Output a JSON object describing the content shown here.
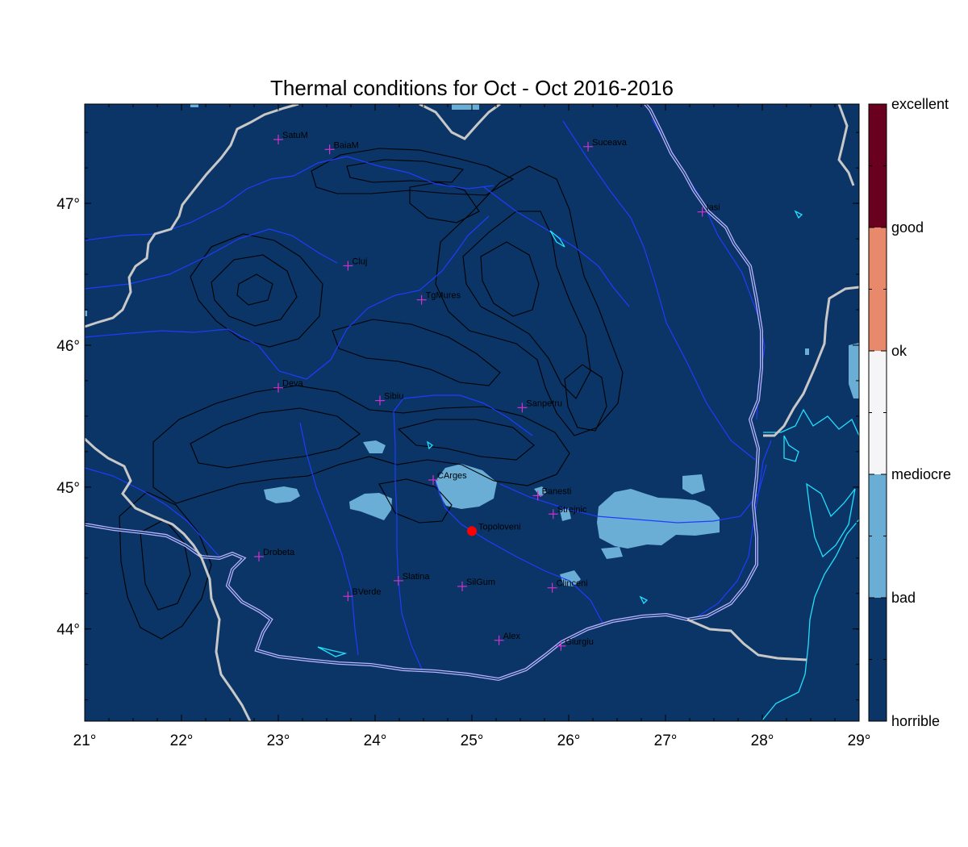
{
  "title": "Thermal conditions for Oct - Oct  2016-2016",
  "colors": {
    "background": "#0b3566",
    "bad": "#6aaed6",
    "contour": "#000000",
    "border": "#c8c8c8",
    "river": "#1f3cff",
    "danube": "#b9b3ff",
    "coast": "#21e0ff",
    "city_marker": "#cc33cc",
    "site_marker": "#ff0000"
  },
  "axes": {
    "lon_range": [
      21,
      29
    ],
    "lat_range": [
      43.35,
      47.7
    ],
    "x_ticks": [
      {
        "value": 21,
        "label": "21°"
      },
      {
        "value": 22,
        "label": "22°"
      },
      {
        "value": 23,
        "label": "23°"
      },
      {
        "value": 24,
        "label": "24°"
      },
      {
        "value": 25,
        "label": "25°"
      },
      {
        "value": 26,
        "label": "26°"
      },
      {
        "value": 27,
        "label": "27°"
      },
      {
        "value": 28,
        "label": "28°"
      },
      {
        "value": 29,
        "label": "29°"
      }
    ],
    "y_ticks": [
      {
        "value": 44,
        "label": "44°"
      },
      {
        "value": 45,
        "label": "45°"
      },
      {
        "value": 46,
        "label": "46°"
      },
      {
        "value": 47,
        "label": "47°"
      }
    ]
  },
  "colorbar": {
    "segments": [
      {
        "name": "horrible",
        "color": "#0b3566"
      },
      {
        "name": "bad",
        "color": "#6aaed6"
      },
      {
        "name": "mediocre",
        "color": "#f5f5f7"
      },
      {
        "name": "ok",
        "color": "#e7896a"
      },
      {
        "name": "good",
        "color": "#6a0020"
      }
    ],
    "labels": [
      "horrible",
      "bad",
      "mediocre",
      "ok",
      "good",
      "excellent"
    ]
  },
  "cities": [
    {
      "name": "SatuM",
      "lon": 23.0,
      "lat": 47.45
    },
    {
      "name": "BaiaM",
      "lon": 23.53,
      "lat": 47.38
    },
    {
      "name": "Suceava",
      "lon": 26.2,
      "lat": 47.4
    },
    {
      "name": "Iasi",
      "lon": 27.38,
      "lat": 46.94
    },
    {
      "name": "Cluj",
      "lon": 23.72,
      "lat": 46.56
    },
    {
      "name": "TgMures",
      "lon": 24.48,
      "lat": 46.32
    },
    {
      "name": "Deva",
      "lon": 23.0,
      "lat": 45.7
    },
    {
      "name": "Sibiu",
      "lon": 24.05,
      "lat": 45.61
    },
    {
      "name": "Sanpetru",
      "lon": 25.52,
      "lat": 45.56
    },
    {
      "name": "CArges",
      "lon": 24.6,
      "lat": 45.05
    },
    {
      "name": "Banesti",
      "lon": 25.68,
      "lat": 44.94
    },
    {
      "name": "Strejnic",
      "lon": 25.84,
      "lat": 44.81
    },
    {
      "name": "Drobeta",
      "lon": 22.8,
      "lat": 44.51
    },
    {
      "name": "Slatina",
      "lon": 24.24,
      "lat": 44.34
    },
    {
      "name": "SilGum",
      "lon": 24.9,
      "lat": 44.3
    },
    {
      "name": "Clinceni",
      "lon": 25.83,
      "lat": 44.29
    },
    {
      "name": "BVerde",
      "lon": 23.72,
      "lat": 44.23
    },
    {
      "name": "Alex",
      "lon": 25.28,
      "lat": 43.92
    },
    {
      "name": "Giurgiu",
      "lon": 25.92,
      "lat": 43.88
    }
  ],
  "site": {
    "name": "Topoloveni",
    "lon": 25.0,
    "lat": 44.69
  }
}
